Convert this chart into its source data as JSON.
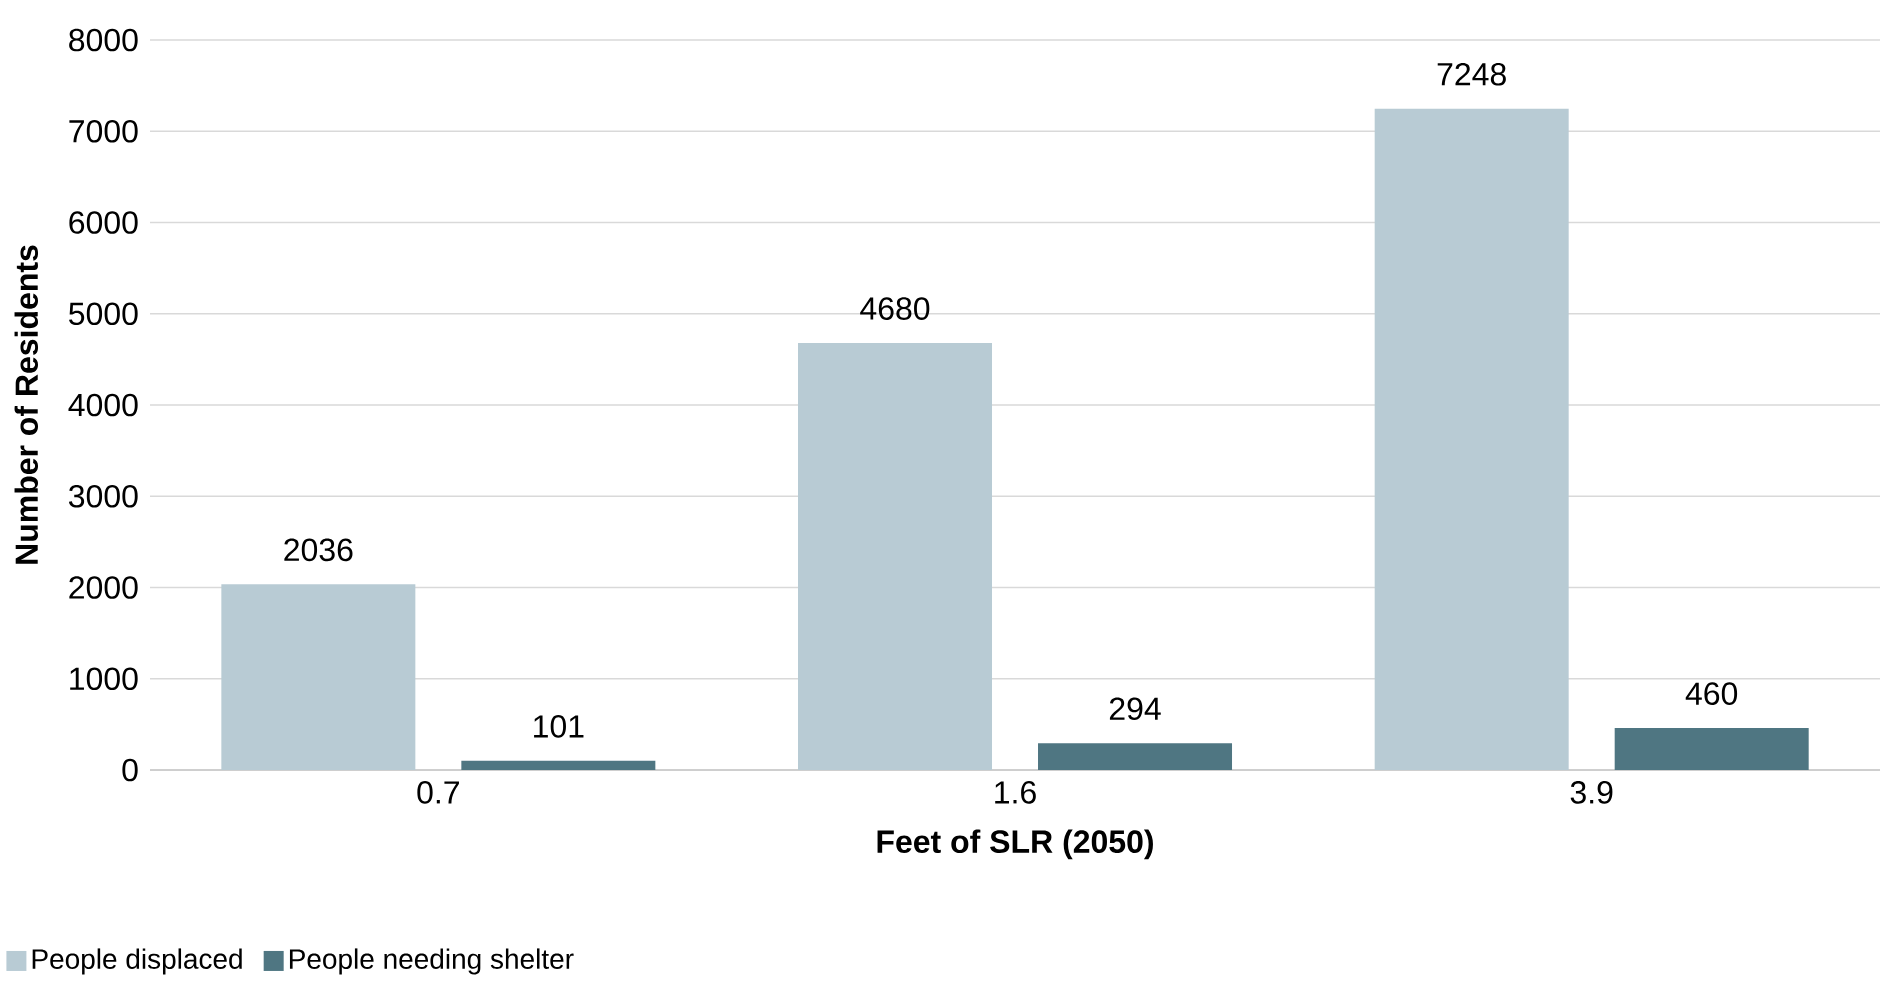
{
  "chart_data": {
    "type": "bar",
    "xlabel": "Feet of SLR (2050)",
    "ylabel": "Number of Residents",
    "categories": [
      "0.7",
      "1.6",
      "3.9"
    ],
    "series": [
      {
        "name": "People displaced",
        "color": "#b8cbd4",
        "values": [
          2036,
          4680,
          7248
        ]
      },
      {
        "name": "People needing shelter",
        "color": "#4f7682",
        "values": [
          101,
          294,
          460
        ]
      }
    ],
    "ylim": [
      0,
      8000
    ],
    "yticks": [
      0,
      1000,
      2000,
      3000,
      4000,
      5000,
      6000,
      7000,
      8000
    ],
    "grid": "y",
    "legend": "bottom left",
    "data_labels": true
  }
}
